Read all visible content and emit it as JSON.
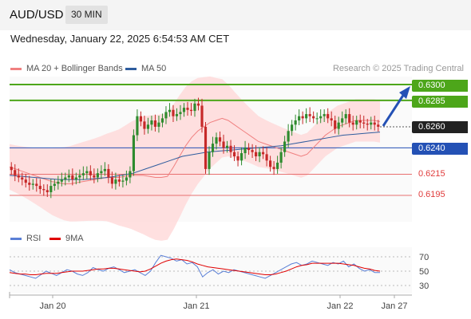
{
  "header": {
    "pair": "AUD/USD",
    "timeframe": "30 MIN"
  },
  "datetime": "Wednesday, January 22, 2025 6:54:53 AM CET",
  "legend": [
    {
      "label": "MA 20 + Bollinger Bands",
      "color": "#f08080"
    },
    {
      "label": "MA 50",
      "color": "#2e5c9e"
    }
  ],
  "credit": "Research © 2025 Trading Central",
  "rsi_legend": [
    {
      "label": "RSI",
      "color": "#5a7fd6"
    },
    {
      "label": "9MA",
      "color": "#e00000"
    }
  ],
  "colors": {
    "green": "#4da61a",
    "blue": "#2451b5",
    "red": "#e03c3c",
    "dark": "#222222"
  },
  "levels": [
    {
      "value": "0.6300",
      "color": "#4da61a",
      "style": "filled"
    },
    {
      "value": "0.6285",
      "color": "#4da61a",
      "style": "filled"
    },
    {
      "value": "0.6260",
      "color": "#222222",
      "style": "filled"
    },
    {
      "value": "0.6240",
      "color": "#2451b5",
      "style": "filled"
    },
    {
      "value": "0.6215",
      "color": "#e03c3c",
      "style": "text"
    },
    {
      "value": "0.6195",
      "color": "#e03c3c",
      "style": "text"
    }
  ],
  "chart_data": {
    "type": "candlestick",
    "x_tick_labels": [
      "Jan 20",
      "Jan 21",
      "Jan 22",
      "Jan 27"
    ],
    "price": {
      "last": 0.626,
      "ylim": [
        0.6166,
        0.6312
      ]
    },
    "resistances": [
      0.63,
      0.6285
    ],
    "pivot": 0.624,
    "supports": [
      0.6215,
      0.6195
    ],
    "close_series": [
      0.6219,
      0.6214,
      0.6212,
      0.621,
      0.6207,
      0.6205,
      0.6206,
      0.6204,
      0.6201,
      0.62,
      0.6198,
      0.6204,
      0.6206,
      0.6208,
      0.621,
      0.6212,
      0.6214,
      0.621,
      0.6212,
      0.6214,
      0.6216,
      0.6218,
      0.6214,
      0.6212,
      0.6216,
      0.6218,
      0.622,
      0.6212,
      0.6206,
      0.621,
      0.6208,
      0.6209,
      0.6212,
      0.6218,
      0.6252,
      0.627,
      0.6265,
      0.6258,
      0.6262,
      0.6266,
      0.626,
      0.6264,
      0.6268,
      0.6274,
      0.6276,
      0.627,
      0.6272,
      0.6274,
      0.6278,
      0.6276,
      0.6275,
      0.6282,
      0.628,
      0.626,
      0.622,
      0.6236,
      0.6244,
      0.625,
      0.6246,
      0.624,
      0.6242,
      0.6236,
      0.6232,
      0.6228,
      0.6235,
      0.624,
      0.6238,
      0.6236,
      0.6232,
      0.6236,
      0.6234,
      0.6228,
      0.6222,
      0.622,
      0.6226,
      0.6236,
      0.6246,
      0.6256,
      0.6262,
      0.6266,
      0.627,
      0.6268,
      0.6272,
      0.627,
      0.6268,
      0.6268,
      0.627,
      0.6272,
      0.6268,
      0.6266,
      0.6258,
      0.6264,
      0.6268,
      0.6272,
      0.6264,
      0.6262,
      0.6266,
      0.6264,
      0.6263,
      0.6262,
      0.6264,
      0.6262,
      0.626
    ],
    "ma20": [
      0.6222,
      0.622,
      0.6218,
      0.6216,
      0.6214,
      0.6212,
      0.621,
      0.6208,
      0.6207,
      0.6206,
      0.6206,
      0.6207,
      0.6208,
      0.6209,
      0.621,
      0.6211,
      0.6212,
      0.6212,
      0.6212,
      0.6213,
      0.6214,
      0.6214,
      0.6214,
      0.6213,
      0.6212,
      0.6212,
      0.6213,
      0.6222,
      0.6232,
      0.6242,
      0.625,
      0.6256,
      0.626,
      0.6264,
      0.6266,
      0.6268,
      0.6266,
      0.6262,
      0.6258,
      0.6254,
      0.625,
      0.6246,
      0.6244,
      0.6242,
      0.624,
      0.6238,
      0.6236,
      0.6234,
      0.6232,
      0.6234,
      0.624,
      0.6246,
      0.6252,
      0.6256,
      0.626,
      0.6262,
      0.6264,
      0.6266,
      0.6266,
      0.6266,
      0.6266,
      0.6265
    ],
    "ma50": [
      0.6214,
      0.6213,
      0.6212,
      0.6211,
      0.621,
      0.621,
      0.621,
      0.6211,
      0.6212,
      0.6214,
      0.6216,
      0.622,
      0.6224,
      0.6228,
      0.6232,
      0.6234,
      0.6236,
      0.6237,
      0.6238,
      0.6239,
      0.624,
      0.6241,
      0.6242,
      0.6244,
      0.6246,
      0.6248,
      0.625,
      0.6252,
      0.6253,
      0.6254,
      0.6255
    ],
    "rsi": {
      "ticks": [
        70,
        50,
        30
      ],
      "ylim": [
        20,
        80
      ],
      "rsi_series": [
        52,
        48,
        46,
        44,
        42,
        40,
        45,
        50,
        47,
        44,
        48,
        52,
        50,
        46,
        44,
        48,
        55,
        52,
        50,
        54,
        56,
        52,
        48,
        50,
        52,
        48,
        44,
        50,
        62,
        72,
        70,
        68,
        64,
        66,
        60,
        62,
        56,
        42,
        48,
        52,
        46,
        50,
        48,
        52,
        50,
        48,
        46,
        44,
        42,
        40,
        44,
        48,
        52,
        56,
        60,
        62,
        58,
        60,
        64,
        62,
        60,
        58,
        62,
        60,
        64,
        56,
        60,
        54,
        50,
        52,
        48,
        48
      ],
      "ma9_series": [
        48,
        47,
        46,
        46,
        45,
        45,
        46,
        47,
        47,
        47,
        48,
        49,
        50,
        50,
        50,
        51,
        52,
        53,
        53,
        54,
        54,
        53,
        52,
        51,
        50,
        49,
        50,
        53,
        57,
        61,
        64,
        66,
        67,
        66,
        65,
        63,
        60,
        58,
        56,
        55,
        54,
        53,
        52,
        51,
        50,
        49,
        48,
        47,
        46,
        45,
        45,
        46,
        48,
        50,
        53,
        56,
        58,
        59,
        61,
        61,
        61,
        61,
        61,
        61,
        60,
        59,
        58,
        56,
        54,
        53,
        51,
        50
      ]
    }
  }
}
